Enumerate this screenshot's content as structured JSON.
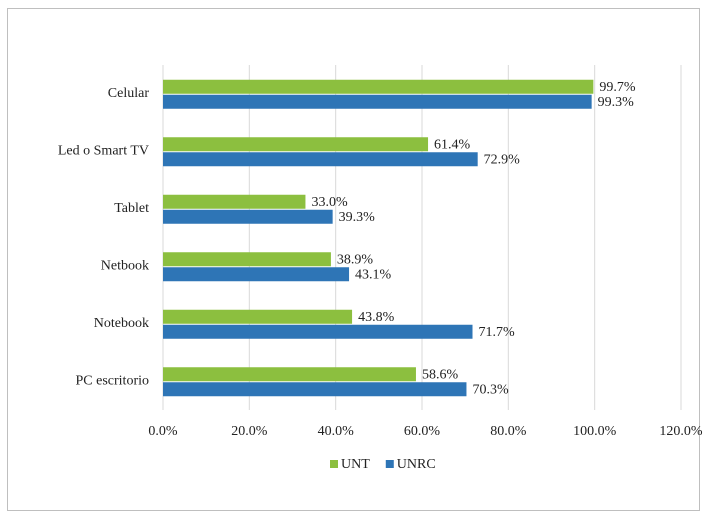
{
  "chart_data": {
    "type": "hbar",
    "categories": [
      "Celular",
      "Led o Smart TV",
      "Tablet",
      "Netbook",
      "Notebook",
      "PC escritorio"
    ],
    "series": [
      {
        "name": "UNT",
        "color": "#8cbf3f",
        "values": [
          99.7,
          61.4,
          33.0,
          38.9,
          43.8,
          58.6
        ],
        "value_labels": [
          "99.7%",
          "61.4%",
          "33.0%",
          "38.9%",
          "43.8%",
          "58.6%"
        ]
      },
      {
        "name": "UNRC",
        "color": "#2e75b6",
        "values": [
          99.3,
          72.9,
          39.3,
          43.1,
          71.7,
          70.3
        ],
        "value_labels": [
          "99.3%",
          "72.9%",
          "39.3%",
          "43.1%",
          "71.7%",
          "70.3%"
        ]
      }
    ],
    "xlim": [
      0,
      120
    ],
    "xticks": [
      {
        "value": 0,
        "label": "0.0%"
      },
      {
        "value": 20,
        "label": "20.0%"
      },
      {
        "value": 40,
        "label": "40.0%"
      },
      {
        "value": 60,
        "label": "60.0%"
      },
      {
        "value": 80,
        "label": "80.0%"
      },
      {
        "value": 100,
        "label": "100.0%"
      },
      {
        "value": 120,
        "label": "120.0%"
      }
    ],
    "grid": true,
    "legend": "bottom"
  }
}
